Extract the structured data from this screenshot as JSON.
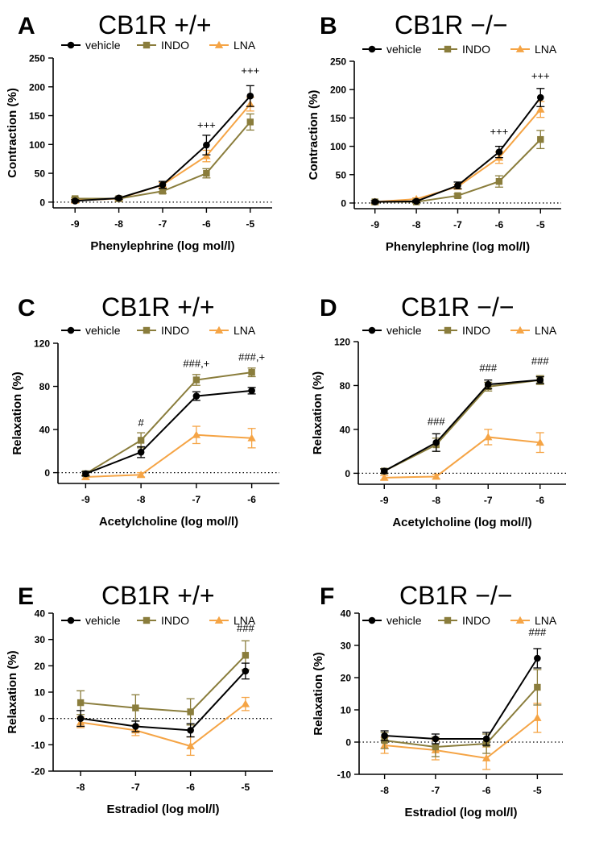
{
  "colors": {
    "vehicle": "#000000",
    "INDO": "#8a7d3c",
    "LNA": "#f5a445"
  },
  "chart_data": [
    {
      "id": "A",
      "type": "line",
      "title": "CB1R +/+",
      "xlabel": "Phenylephrine (log mol/l)",
      "ylabel": "Contraction  (%)",
      "x": [
        -9,
        -8,
        -7,
        -6,
        -5
      ],
      "xlim": [
        -9.5,
        -4.5
      ],
      "ylim": [
        -10,
        250
      ],
      "yticks": [
        0,
        50,
        100,
        150,
        200,
        250
      ],
      "legend": [
        "vehicle",
        "INDO",
        "LNA"
      ],
      "series": [
        {
          "name": "vehicle",
          "values": [
            2,
            7,
            30,
            99,
            184
          ],
          "errors": [
            2,
            2,
            6,
            17,
            18
          ],
          "marker": "circle"
        },
        {
          "name": "INDO",
          "values": [
            6,
            6,
            19,
            50,
            139
          ],
          "errors": [
            2,
            2,
            4,
            8,
            14
          ],
          "marker": "square"
        },
        {
          "name": "LNA",
          "values": [
            3,
            6,
            30,
            80,
            170
          ],
          "errors": [
            2,
            2,
            4,
            10,
            12
          ],
          "marker": "triangle"
        }
      ],
      "annotations": [
        {
          "x": -6,
          "y": 128,
          "text": "+++"
        },
        {
          "x": -5,
          "y": 222,
          "text": "+++"
        }
      ]
    },
    {
      "id": "B",
      "type": "line",
      "title": "CB1R −/−",
      "xlabel": "Phenylephrine (log mol/l)",
      "ylabel": "Contraction  (%)",
      "x": [
        -9,
        -8,
        -7,
        -6,
        -5
      ],
      "xlim": [
        -9.5,
        -4.5
      ],
      "ylim": [
        -10,
        250
      ],
      "yticks": [
        0,
        50,
        100,
        150,
        200,
        250
      ],
      "legend": [
        "vehicle",
        "INDO",
        "LNA"
      ],
      "series": [
        {
          "name": "vehicle",
          "values": [
            2,
            3,
            31,
            90,
            186
          ],
          "errors": [
            2,
            2,
            6,
            10,
            16
          ],
          "marker": "circle"
        },
        {
          "name": "INDO",
          "values": [
            2,
            2,
            13,
            38,
            112
          ],
          "errors": [
            2,
            2,
            3,
            10,
            16
          ],
          "marker": "square"
        },
        {
          "name": "LNA",
          "values": [
            2,
            7,
            29,
            80,
            165
          ],
          "errors": [
            2,
            2,
            4,
            10,
            14
          ],
          "marker": "triangle"
        }
      ],
      "annotations": [
        {
          "x": -6,
          "y": 120,
          "text": "+++"
        },
        {
          "x": -5,
          "y": 218,
          "text": "+++"
        }
      ]
    },
    {
      "id": "C",
      "type": "line",
      "title": "CB1R +/+",
      "xlabel": "Acetylcholine (log mol/l)",
      "ylabel": "Relaxation  (%)",
      "x": [
        -9,
        -8,
        -7,
        -6
      ],
      "xlim": [
        -9.5,
        -5.5
      ],
      "ylim": [
        -10,
        120
      ],
      "yticks": [
        0,
        40,
        80,
        120
      ],
      "legend": [
        "vehicle",
        "INDO",
        "LNA"
      ],
      "series": [
        {
          "name": "vehicle",
          "values": [
            -1,
            19,
            71,
            76
          ],
          "errors": [
            2,
            5,
            4,
            3
          ],
          "marker": "circle"
        },
        {
          "name": "INDO",
          "values": [
            -1,
            30,
            86,
            93
          ],
          "errors": [
            2,
            7,
            5,
            4
          ],
          "marker": "square"
        },
        {
          "name": "LNA",
          "values": [
            -4,
            -2,
            35,
            32
          ],
          "errors": [
            2,
            2,
            8,
            9
          ],
          "marker": "triangle"
        }
      ],
      "annotations": [
        {
          "x": -8,
          "y": 43,
          "text": "#"
        },
        {
          "x": -7,
          "y": 98,
          "text": "###,+"
        },
        {
          "x": -6,
          "y": 104,
          "text": "###,+"
        }
      ]
    },
    {
      "id": "D",
      "type": "line",
      "title": "CB1R −/−",
      "xlabel": "Acetylcholine (log mol/l)",
      "ylabel": "Relaxation  (%)",
      "x": [
        -9,
        -8,
        -7,
        -6
      ],
      "xlim": [
        -9.5,
        -5.5
      ],
      "ylim": [
        -10,
        120
      ],
      "yticks": [
        0,
        40,
        80,
        120
      ],
      "legend": [
        "vehicle",
        "INDO",
        "LNA"
      ],
      "series": [
        {
          "name": "vehicle",
          "values": [
            2,
            28,
            81,
            85
          ],
          "errors": [
            2,
            8,
            4,
            3
          ],
          "marker": "circle"
        },
        {
          "name": "INDO",
          "values": [
            2,
            26,
            79,
            85
          ],
          "errors": [
            2,
            6,
            4,
            4
          ],
          "marker": "square"
        },
        {
          "name": "LNA",
          "values": [
            -4,
            -3,
            33,
            28
          ],
          "errors": [
            2,
            2,
            7,
            9
          ],
          "marker": "triangle"
        }
      ],
      "annotations": [
        {
          "x": -8,
          "y": 44,
          "text": "###"
        },
        {
          "x": -7,
          "y": 93,
          "text": "###"
        },
        {
          "x": -6,
          "y": 99,
          "text": "###"
        }
      ]
    },
    {
      "id": "E",
      "type": "line",
      "title": "CB1R +/+",
      "xlabel": "Estradiol (log mol/l)",
      "ylabel": "Relaxation  (%)",
      "x": [
        -8,
        -7,
        -6,
        -5
      ],
      "xlim": [
        -8.5,
        -4.5
      ],
      "ylim": [
        -20,
        40
      ],
      "yticks": [
        -20,
        -10,
        0,
        10,
        20,
        30,
        40
      ],
      "legend": [
        "vehicle",
        "INDO",
        "LNA"
      ],
      "series": [
        {
          "name": "vehicle",
          "values": [
            0,
            -3,
            -4.5,
            18
          ],
          "errors": [
            3,
            2,
            2.5,
            3
          ],
          "marker": "circle"
        },
        {
          "name": "INDO",
          "values": [
            6,
            4,
            2.5,
            24
          ],
          "errors": [
            4.5,
            5,
            5,
            5.5
          ],
          "marker": "square"
        },
        {
          "name": "LNA",
          "values": [
            -1.5,
            -4.5,
            -10.5,
            5.5
          ],
          "errors": [
            2,
            2,
            3.5,
            2.5
          ],
          "marker": "triangle"
        }
      ],
      "annotations": [
        {
          "x": -5,
          "y": 33,
          "text": "###"
        }
      ]
    },
    {
      "id": "F",
      "type": "line",
      "title": "CB1R −/−",
      "xlabel": "Estradiol (log mol/l)",
      "ylabel": "Relaxation  (%)",
      "x": [
        -8,
        -7,
        -6,
        -5
      ],
      "xlim": [
        -8.5,
        -4.5
      ],
      "ylim": [
        -10,
        40
      ],
      "yticks": [
        -10,
        0,
        10,
        20,
        30,
        40
      ],
      "legend": [
        "vehicle",
        "INDO",
        "LNA"
      ],
      "series": [
        {
          "name": "vehicle",
          "values": [
            2,
            1,
            1,
            26
          ],
          "errors": [
            1.5,
            1.5,
            2,
            3
          ],
          "marker": "circle"
        },
        {
          "name": "INDO",
          "values": [
            0.5,
            -1.5,
            -0.5,
            17
          ],
          "errors": [
            2.5,
            3,
            3,
            5.5
          ],
          "marker": "square"
        },
        {
          "name": "LNA",
          "values": [
            -1,
            -2.5,
            -5,
            7.5
          ],
          "errors": [
            2.5,
            3,
            3.5,
            4.5
          ],
          "marker": "triangle"
        }
      ],
      "annotations": [
        {
          "x": -5,
          "y": 33,
          "text": "###"
        }
      ]
    }
  ]
}
